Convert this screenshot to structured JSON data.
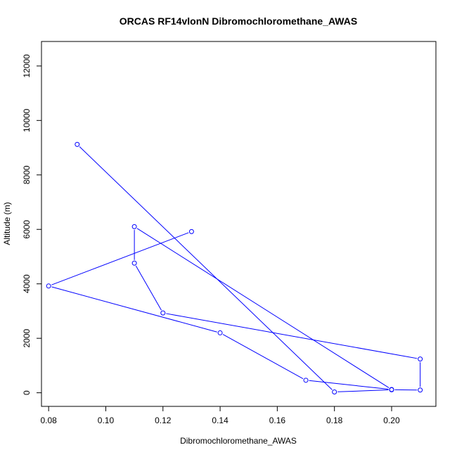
{
  "chart_data": {
    "type": "line",
    "title": "ORCAS RF14vlonN Dibromochloromethane_AWAS",
    "xlabel": "Dibromochloromethane_AWAS",
    "ylabel": "Altitude (m)",
    "xlim": [
      0.0775,
      0.2155
    ],
    "ylim": [
      -500,
      12900
    ],
    "xticks": [
      "0.08",
      "0.10",
      "0.12",
      "0.14",
      "0.16",
      "0.18",
      "0.20"
    ],
    "yticks": [
      "0",
      "2000",
      "4000",
      "6000",
      "8000",
      "10000",
      "12000"
    ],
    "grid": false,
    "legend": "none",
    "series_color": "#0000ff",
    "x": [
      0.09,
      0.18,
      0.2,
      0.21,
      0.21,
      0.12,
      0.11,
      0.11,
      0.2,
      0.17,
      0.14,
      0.08,
      0.13
    ],
    "y": [
      9120,
      30,
      110,
      100,
      1240,
      2930,
      4760,
      6100,
      120,
      460,
      2200,
      3920,
      5920
    ]
  }
}
